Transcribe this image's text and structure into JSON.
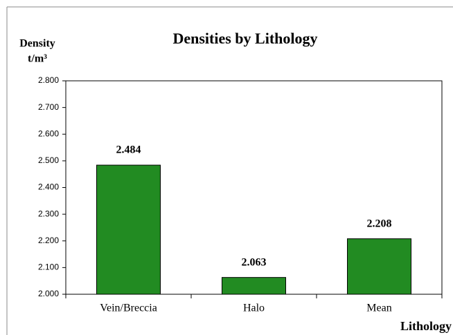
{
  "chart_data": {
    "type": "bar",
    "title": "Densities by Lithology",
    "ylabel": [
      "Density",
      "t/m³"
    ],
    "xlabel": "Lithology",
    "categories": [
      "Vein/Breccia",
      "Halo",
      "Mean"
    ],
    "values": [
      2.484,
      2.063,
      2.208
    ],
    "color": "#228b22",
    "ylim": [
      2.0,
      2.8
    ],
    "yticks": [
      {
        "value": 2.0,
        "label": "2.000"
      },
      {
        "value": 2.1,
        "label": "2.100"
      },
      {
        "value": 2.2,
        "label": "2.200"
      },
      {
        "value": 2.3,
        "label": "2.300"
      },
      {
        "value": 2.4,
        "label": "2.400"
      },
      {
        "value": 2.5,
        "label": "2.500"
      },
      {
        "value": 2.6,
        "label": "2.600"
      },
      {
        "value": 2.7,
        "label": "2.700"
      },
      {
        "value": 2.8,
        "label": "2.800"
      }
    ],
    "grid": false
  }
}
